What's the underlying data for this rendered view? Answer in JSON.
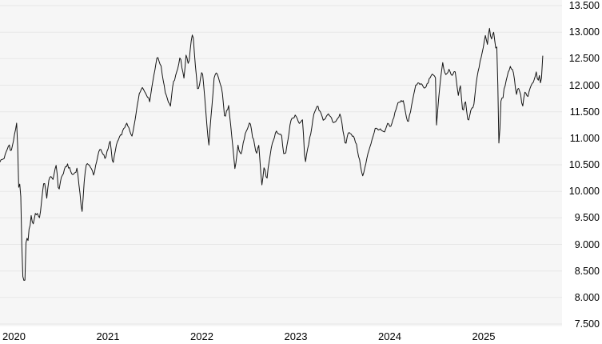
{
  "chart_data": {
    "type": "line",
    "title": "",
    "description": "Equity index price chart, daily values from end of 2019 to late 2025",
    "x_tick_labels": [
      "2020",
      "2021",
      "2022",
      "2023",
      "2024",
      "2025"
    ],
    "y_tick_labels": [
      "13.500",
      "13.000",
      "12.500",
      "12.000",
      "11.500",
      "11.000",
      "10.500",
      "10.000",
      "9.500",
      "9.000",
      "8.500",
      "8.000",
      "7.500"
    ],
    "y_min": 7500,
    "y_max": 13500,
    "y_step": 500,
    "x_range_years_since_2020": [
      -0.05,
      5.74
    ],
    "grid": "horizontal",
    "legend_position": "none",
    "series": [
      {
        "name": "index-price",
        "x_unit": "years since 2020-01-01",
        "points": [
          [
            -0.05,
            10560
          ],
          [
            0.0,
            10620
          ],
          [
            0.03,
            10760
          ],
          [
            0.055,
            10880
          ],
          [
            0.075,
            10740
          ],
          [
            0.11,
            11030
          ],
          [
            0.135,
            11270
          ],
          [
            0.148,
            10720
          ],
          [
            0.158,
            9830
          ],
          [
            0.172,
            10150
          ],
          [
            0.186,
            9420
          ],
          [
            0.194,
            8270
          ],
          [
            0.199,
            8760
          ],
          [
            0.205,
            7600
          ],
          [
            0.216,
            8650
          ],
          [
            0.224,
            8170
          ],
          [
            0.235,
            9130
          ],
          [
            0.25,
            9070
          ],
          [
            0.29,
            9600
          ],
          [
            0.305,
            9360
          ],
          [
            0.34,
            9580
          ],
          [
            0.37,
            9430
          ],
          [
            0.43,
            10280
          ],
          [
            0.455,
            9840
          ],
          [
            0.48,
            10250
          ],
          [
            0.52,
            10180
          ],
          [
            0.555,
            10520
          ],
          [
            0.582,
            10030
          ],
          [
            0.61,
            10270
          ],
          [
            0.675,
            10480
          ],
          [
            0.73,
            10300
          ],
          [
            0.78,
            10420
          ],
          [
            0.81,
            9900
          ],
          [
            0.828,
            9530
          ],
          [
            0.86,
            10310
          ],
          [
            0.878,
            10480
          ],
          [
            0.92,
            10470
          ],
          [
            0.955,
            10340
          ],
          [
            1.0,
            10700
          ],
          [
            1.02,
            10820
          ],
          [
            1.08,
            10600
          ],
          [
            1.13,
            10940
          ],
          [
            1.16,
            10520
          ],
          [
            1.2,
            10900
          ],
          [
            1.25,
            11080
          ],
          [
            1.3,
            11290
          ],
          [
            1.36,
            11020
          ],
          [
            1.44,
            11850
          ],
          [
            1.47,
            11940
          ],
          [
            1.52,
            11830
          ],
          [
            1.55,
            11720
          ],
          [
            1.62,
            12430
          ],
          [
            1.635,
            12540
          ],
          [
            1.67,
            12380
          ],
          [
            1.72,
            11860
          ],
          [
            1.77,
            11620
          ],
          [
            1.8,
            12050
          ],
          [
            1.83,
            12200
          ],
          [
            1.875,
            12560
          ],
          [
            1.915,
            12080
          ],
          [
            1.94,
            12610
          ],
          [
            1.965,
            12380
          ],
          [
            2.0,
            12940
          ],
          [
            2.01,
            12990
          ],
          [
            2.04,
            12280
          ],
          [
            2.065,
            11890
          ],
          [
            2.11,
            12270
          ],
          [
            2.15,
            11480
          ],
          [
            2.18,
            10860
          ],
          [
            2.24,
            12160
          ],
          [
            2.27,
            12240
          ],
          [
            2.32,
            11900
          ],
          [
            2.35,
            11330
          ],
          [
            2.39,
            11640
          ],
          [
            2.46,
            10420
          ],
          [
            2.49,
            10880
          ],
          [
            2.52,
            10700
          ],
          [
            2.58,
            11130
          ],
          [
            2.62,
            11250
          ],
          [
            2.69,
            10720
          ],
          [
            2.71,
            10950
          ],
          [
            2.745,
            10070
          ],
          [
            2.77,
            10480
          ],
          [
            2.8,
            10270
          ],
          [
            2.84,
            10780
          ],
          [
            2.9,
            11130
          ],
          [
            2.955,
            11060
          ],
          [
            2.975,
            10700
          ],
          [
            3.0,
            10730
          ],
          [
            3.05,
            11300
          ],
          [
            3.1,
            11420
          ],
          [
            3.14,
            11260
          ],
          [
            3.18,
            11320
          ],
          [
            3.205,
            10520
          ],
          [
            3.22,
            10700
          ],
          [
            3.3,
            11460
          ],
          [
            3.34,
            11590
          ],
          [
            3.4,
            11330
          ],
          [
            3.46,
            11420
          ],
          [
            3.51,
            11270
          ],
          [
            3.58,
            11420
          ],
          [
            3.635,
            10840
          ],
          [
            3.67,
            11110
          ],
          [
            3.72,
            11010
          ],
          [
            3.75,
            10880
          ],
          [
            3.82,
            10270
          ],
          [
            3.88,
            10740
          ],
          [
            3.95,
            11160
          ],
          [
            4.0,
            11140
          ],
          [
            4.05,
            11100
          ],
          [
            4.08,
            11290
          ],
          [
            4.12,
            11210
          ],
          [
            4.19,
            11650
          ],
          [
            4.25,
            11740
          ],
          [
            4.3,
            11290
          ],
          [
            4.38,
            11990
          ],
          [
            4.42,
            12080
          ],
          [
            4.48,
            11930
          ],
          [
            4.55,
            12230
          ],
          [
            4.6,
            12150
          ],
          [
            4.602,
            11240
          ],
          [
            4.64,
            12020
          ],
          [
            4.67,
            12430
          ],
          [
            4.7,
            12180
          ],
          [
            4.74,
            12280
          ],
          [
            4.77,
            12150
          ],
          [
            4.8,
            12280
          ],
          [
            4.835,
            11820
          ],
          [
            4.86,
            11990
          ],
          [
            4.885,
            11480
          ],
          [
            4.91,
            11750
          ],
          [
            4.94,
            11300
          ],
          [
            4.975,
            11560
          ],
          [
            5.0,
            11620
          ],
          [
            5.03,
            12100
          ],
          [
            5.09,
            12630
          ],
          [
            5.125,
            12940
          ],
          [
            5.145,
            12780
          ],
          [
            5.165,
            13150
          ],
          [
            5.185,
            12860
          ],
          [
            5.21,
            13060
          ],
          [
            5.24,
            12680
          ],
          [
            5.252,
            12780
          ],
          [
            5.262,
            11180
          ],
          [
            5.272,
            10700
          ],
          [
            5.285,
            11640
          ],
          [
            5.31,
            11800
          ],
          [
            5.345,
            12100
          ],
          [
            5.39,
            12360
          ],
          [
            5.425,
            12270
          ],
          [
            5.455,
            11840
          ],
          [
            5.475,
            11980
          ],
          [
            5.5,
            11800
          ],
          [
            5.52,
            11600
          ],
          [
            5.545,
            11900
          ],
          [
            5.575,
            11760
          ],
          [
            5.61,
            11990
          ],
          [
            5.645,
            12100
          ],
          [
            5.665,
            12250
          ],
          [
            5.685,
            12060
          ],
          [
            5.7,
            12180
          ],
          [
            5.715,
            12020
          ],
          [
            5.725,
            12150
          ],
          [
            5.735,
            12550
          ]
        ]
      }
    ]
  },
  "colors": {
    "page_bg": "#ffffff",
    "plot_bg": "#f6f6f6",
    "grid": "#e7e7e7",
    "line": "#151515",
    "text": "#000000"
  }
}
